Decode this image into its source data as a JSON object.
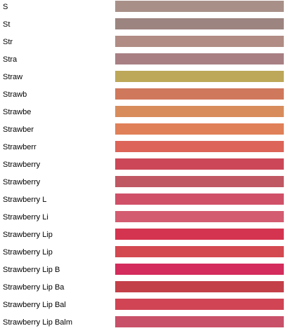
{
  "swatches": [
    {
      "label": "S",
      "color": "#a89088"
    },
    {
      "label": "St",
      "color": "#9c8480"
    },
    {
      "label": "Str",
      "color": "#b08c84"
    },
    {
      "label": "Stra",
      "color": "#a88084"
    },
    {
      "label": "Straw",
      "color": "#bca858"
    },
    {
      "label": "Strawb",
      "color": "#d0785c"
    },
    {
      "label": "Strawbe",
      "color": "#d88c5c"
    },
    {
      "label": "Strawber",
      "color": "#e08058"
    },
    {
      "label": "Strawberr",
      "color": "#dc6458"
    },
    {
      "label": "Strawberry",
      "color": "#cc4858"
    },
    {
      "label": "Strawberry",
      "color": "#c05864"
    },
    {
      "label": "Strawberry L",
      "color": "#d05068"
    },
    {
      "label": "Strawberry Li",
      "color": "#d45c70"
    },
    {
      "label": "Strawberry Lip",
      "color": "#d43450"
    },
    {
      "label": "Strawberry Lip",
      "color": "#d44850"
    },
    {
      "label": "Strawberry Lip B",
      "color": "#d42c5c"
    },
    {
      "label": "Strawberry Lip Ba",
      "color": "#c44048"
    },
    {
      "label": "Strawberry Lip Bal",
      "color": "#d04454"
    },
    {
      "label": "Strawberry Lip Balm",
      "color": "#c85068"
    }
  ]
}
